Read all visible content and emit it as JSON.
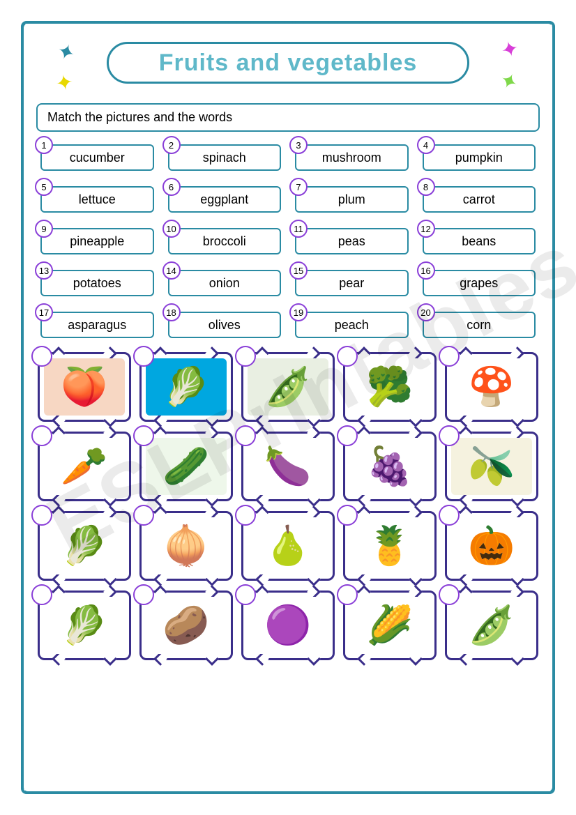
{
  "title": "Fruits and vegetables",
  "instruction": "Match the pictures and the words",
  "colors": {
    "frame": "#2a8ba3",
    "title_text": "#5fb8c9",
    "number_ring": "#8a3fd8",
    "picture_frame": "#3a2e8a",
    "background": "#ffffff"
  },
  "sparkles": [
    {
      "color": "#2a8ba3"
    },
    {
      "color": "#e8d800"
    },
    {
      "color": "#d83fd8"
    },
    {
      "color": "#7fd84a"
    }
  ],
  "words": [
    {
      "n": "1",
      "label": "cucumber"
    },
    {
      "n": "2",
      "label": "spinach"
    },
    {
      "n": "3",
      "label": "mushroom"
    },
    {
      "n": "4",
      "label": "pumpkin"
    },
    {
      "n": "5",
      "label": "lettuce"
    },
    {
      "n": "6",
      "label": "eggplant"
    },
    {
      "n": "7",
      "label": "plum"
    },
    {
      "n": "8",
      "label": "carrot"
    },
    {
      "n": "9",
      "label": "pineapple"
    },
    {
      "n": "10",
      "label": "broccoli"
    },
    {
      "n": "11",
      "label": "peas"
    },
    {
      "n": "12",
      "label": "beans"
    },
    {
      "n": "13",
      "label": "potatoes"
    },
    {
      "n": "14",
      "label": "onion"
    },
    {
      "n": "15",
      "label": "pear"
    },
    {
      "n": "16",
      "label": "grapes"
    },
    {
      "n": "17",
      "label": "asparagus"
    },
    {
      "n": "18",
      "label": "olives"
    },
    {
      "n": "19",
      "label": "peach"
    },
    {
      "n": "20",
      "label": "corn"
    }
  ],
  "pictures": [
    {
      "name": "peach",
      "glyph": "🍑",
      "bg": "#f7d7c3"
    },
    {
      "name": "asparagus",
      "glyph": "🥬",
      "bg": "#00a7e0"
    },
    {
      "name": "beans",
      "glyph": "🫛",
      "bg": "#e9efe2"
    },
    {
      "name": "broccoli",
      "glyph": "🥦",
      "bg": "#ffffff"
    },
    {
      "name": "mushroom",
      "glyph": "🍄",
      "bg": "#ffffff"
    },
    {
      "name": "carrot",
      "glyph": "🥕",
      "bg": "#ffffff"
    },
    {
      "name": "cucumber",
      "glyph": "🥒",
      "bg": "#eef7ea"
    },
    {
      "name": "eggplant",
      "glyph": "🍆",
      "bg": "#ffffff"
    },
    {
      "name": "grapes",
      "glyph": "🍇",
      "bg": "#ffffff"
    },
    {
      "name": "olives",
      "glyph": "🫒",
      "bg": "#f5f2df"
    },
    {
      "name": "lettuce",
      "glyph": "🥬",
      "bg": "#ffffff"
    },
    {
      "name": "onion",
      "glyph": "🧅",
      "bg": "#ffffff"
    },
    {
      "name": "pear",
      "glyph": "🍐",
      "bg": "#ffffff"
    },
    {
      "name": "pineapple",
      "glyph": "🍍",
      "bg": "#ffffff"
    },
    {
      "name": "pumpkin",
      "glyph": "🎃",
      "bg": "#ffffff"
    },
    {
      "name": "spinach",
      "glyph": "🥬",
      "bg": "#ffffff"
    },
    {
      "name": "potatoes",
      "glyph": "🥔",
      "bg": "#ffffff"
    },
    {
      "name": "plum",
      "glyph": "🟣",
      "bg": "#ffffff"
    },
    {
      "name": "corn",
      "glyph": "🌽",
      "bg": "#ffffff"
    },
    {
      "name": "peas",
      "glyph": "🫛",
      "bg": "#ffffff"
    }
  ],
  "watermark": "ESLPrintables.com"
}
